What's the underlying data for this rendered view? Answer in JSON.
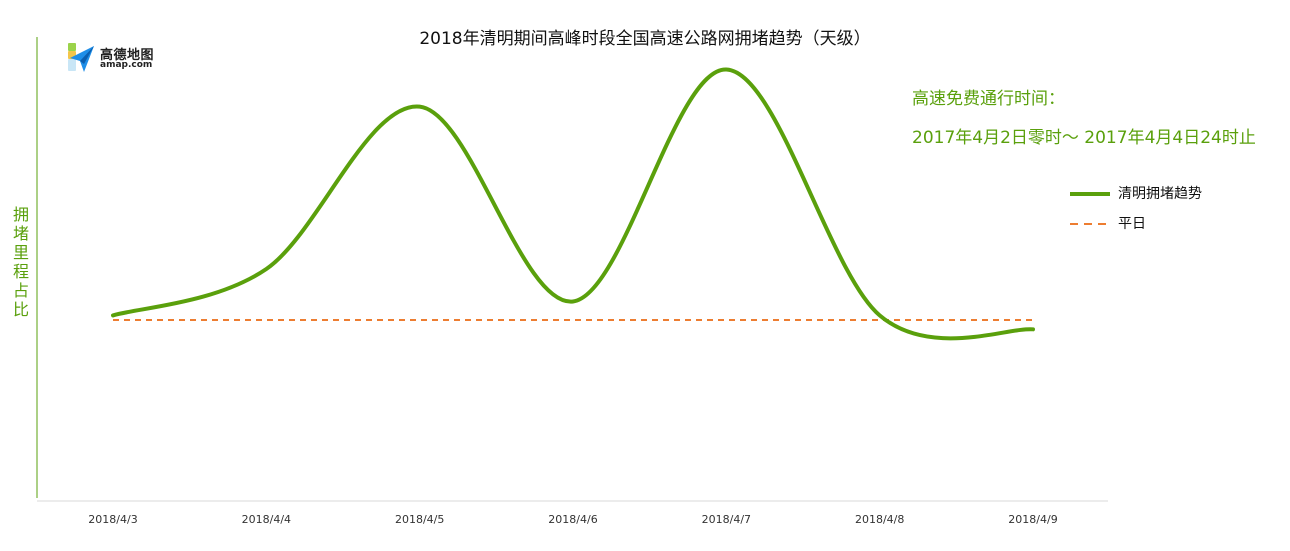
{
  "colors": {
    "trend": "#5aa00c",
    "baseline": "#ed7d31",
    "note": "#5aa00c",
    "axis": "#5aa00c"
  },
  "logo": {
    "icon": "amap-paper-plane-icon",
    "text_cn": "高德地图",
    "text_en": "amap.com"
  },
  "note": {
    "line1": "高速免费通行时间：",
    "line2": "2017年4月2日零时～ 2017年4月4日24时止"
  },
  "chart_data": {
    "type": "line",
    "title": "2018年清明期间高峰时段全国高速公路网拥堵趋势（天级）",
    "xlabel": "",
    "ylabel": "拥堵里程占比",
    "categories": [
      "2018/4/3",
      "2018/4/4",
      "2018/4/5",
      "2018/4/6",
      "2018/4/7",
      "2018/4/8",
      "2018/4/9"
    ],
    "ylim": [
      0,
      100
    ],
    "grid": false,
    "legend_position": "right",
    "series": [
      {
        "name": "清明拥堵趋势",
        "style": "solid",
        "values": [
          40,
          50,
          85,
          43,
          93,
          40,
          37
        ]
      },
      {
        "name": "平日",
        "style": "dashed",
        "values": [
          39,
          39,
          39,
          39,
          39,
          39,
          39
        ]
      }
    ]
  }
}
